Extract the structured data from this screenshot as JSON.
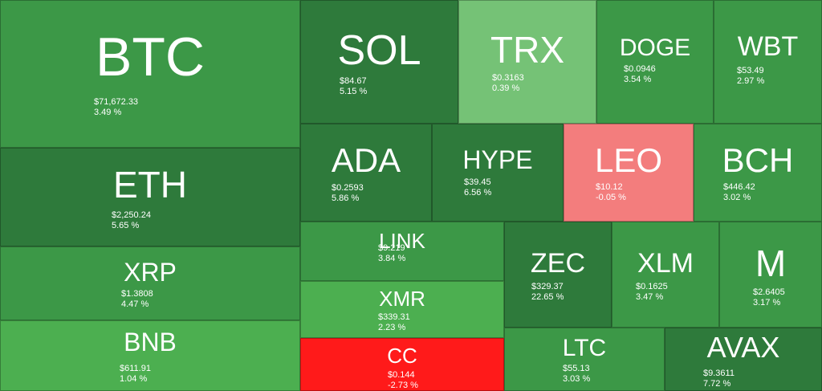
{
  "chart_data": {
    "type": "heatmap",
    "metric": "24h change",
    "colors": {
      "dark_green": "#2e7a3b",
      "green": "#3c9847",
      "bright_green": "#4caf50",
      "light_green": "#75c276",
      "light_red": "#f37d7d",
      "red": "#ff1a1a"
    },
    "items": [
      {
        "symbol": "BTC",
        "price": "$71,672.33",
        "change": "3.49 %",
        "change_value": 3.49,
        "color": "green"
      },
      {
        "symbol": "ETH",
        "price": "$2,250.24",
        "change": "5.65 %",
        "change_value": 5.65,
        "color": "dark_green"
      },
      {
        "symbol": "XRP",
        "price": "$1.3808",
        "change": "4.47 %",
        "change_value": 4.47,
        "color": "green"
      },
      {
        "symbol": "BNB",
        "price": "$611.91",
        "change": "1.04 %",
        "change_value": 1.04,
        "color": "bright_green"
      },
      {
        "symbol": "SOL",
        "price": "$84.67",
        "change": "5.15 %",
        "change_value": 5.15,
        "color": "dark_green"
      },
      {
        "symbol": "TRX",
        "price": "$0.3163",
        "change": "0.39 %",
        "change_value": 0.39,
        "color": "light_green"
      },
      {
        "symbol": "DOGE",
        "price": "$0.0946",
        "change": "3.54 %",
        "change_value": 3.54,
        "color": "green"
      },
      {
        "symbol": "WBT",
        "price": "$53.49",
        "change": "2.97 %",
        "change_value": 2.97,
        "color": "green"
      },
      {
        "symbol": "ADA",
        "price": "$0.2593",
        "change": "5.86 %",
        "change_value": 5.86,
        "color": "dark_green"
      },
      {
        "symbol": "HYPE",
        "price": "$39.45",
        "change": "6.56 %",
        "change_value": 6.56,
        "color": "dark_green"
      },
      {
        "symbol": "LEO",
        "price": "$10.12",
        "change": "-0.05 %",
        "change_value": -0.05,
        "color": "light_red"
      },
      {
        "symbol": "BCH",
        "price": "$446.42",
        "change": "3.02 %",
        "change_value": 3.02,
        "color": "green"
      },
      {
        "symbol": "LINK",
        "price": "$9.219",
        "change": "3.84 %",
        "change_value": 3.84,
        "color": "green"
      },
      {
        "symbol": "XMR",
        "price": "$339.31",
        "change": "2.23 %",
        "change_value": 2.23,
        "color": "bright_green"
      },
      {
        "symbol": "CC",
        "price": "$0.144",
        "change": "-2.73 %",
        "change_value": -2.73,
        "color": "red"
      },
      {
        "symbol": "ZEC",
        "price": "$329.37",
        "change": "22.65 %",
        "change_value": 22.65,
        "color": "dark_green"
      },
      {
        "symbol": "XLM",
        "price": "$0.1625",
        "change": "3.47 %",
        "change_value": 3.47,
        "color": "green"
      },
      {
        "symbol": "M",
        "price": "$2.6405",
        "change": "3.17 %",
        "change_value": 3.17,
        "color": "green"
      },
      {
        "symbol": "LTC",
        "price": "$55.13",
        "change": "3.03 %",
        "change_value": 3.03,
        "color": "green"
      },
      {
        "symbol": "AVAX",
        "price": "$9.3611",
        "change": "7.72 %",
        "change_value": 7.72,
        "color": "dark_green"
      }
    ]
  }
}
